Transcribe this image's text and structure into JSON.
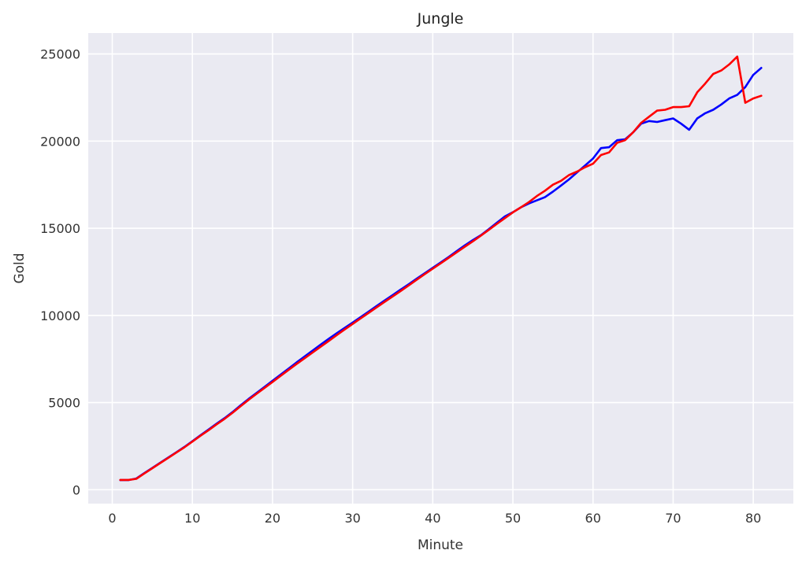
{
  "chart_data": {
    "type": "line",
    "title": "Jungle",
    "xlabel": "Minute",
    "ylabel": "Gold",
    "xlim": [
      -3,
      85
    ],
    "ylim": [
      -800,
      26200
    ],
    "xticks": [
      0,
      10,
      20,
      30,
      40,
      50,
      60,
      70,
      80
    ],
    "yticks": [
      0,
      5000,
      10000,
      15000,
      20000,
      25000
    ],
    "grid": true,
    "colors": {
      "background": "#eaeaf2",
      "grid": "#ffffff"
    },
    "series": [
      {
        "color": "#0000ff",
        "x": [
          1,
          2,
          3,
          4,
          5,
          6,
          7,
          8,
          9,
          10,
          11,
          12,
          13,
          14,
          15,
          16,
          17,
          18,
          19,
          20,
          21,
          22,
          23,
          24,
          25,
          26,
          27,
          28,
          29,
          30,
          31,
          32,
          33,
          34,
          35,
          36,
          37,
          38,
          39,
          40,
          41,
          42,
          43,
          44,
          45,
          46,
          47,
          48,
          49,
          50,
          51,
          52,
          53,
          54,
          55,
          56,
          57,
          58,
          59,
          60,
          61,
          62,
          63,
          64,
          65,
          66,
          67,
          68,
          69,
          70,
          71,
          72,
          73,
          74,
          75,
          76,
          77,
          78,
          79,
          80,
          81
        ],
        "y": [
          550,
          550,
          640,
          950,
          1250,
          1550,
          1850,
          2150,
          2450,
          2780,
          3120,
          3450,
          3780,
          4100,
          4450,
          4830,
          5200,
          5550,
          5900,
          6250,
          6600,
          6950,
          7300,
          7640,
          7980,
          8320,
          8650,
          8970,
          9280,
          9590,
          9900,
          10220,
          10540,
          10860,
          11170,
          11480,
          11790,
          12110,
          12420,
          12730,
          13040,
          13360,
          13690,
          14020,
          14320,
          14600,
          14950,
          15320,
          15680,
          15920,
          16200,
          16420,
          16600,
          16780,
          17100,
          17450,
          17800,
          18200,
          18600,
          19000,
          19600,
          19650,
          20050,
          20100,
          20500,
          21000,
          21150,
          21100,
          21200,
          21300,
          21000,
          20650,
          21300,
          21600,
          21800,
          22100,
          22450,
          22650,
          23100,
          23800,
          24200
        ]
      },
      {
        "color": "#ff0000",
        "x": [
          1,
          2,
          3,
          4,
          5,
          6,
          7,
          8,
          9,
          10,
          11,
          12,
          13,
          14,
          15,
          16,
          17,
          18,
          19,
          20,
          21,
          22,
          23,
          24,
          25,
          26,
          27,
          28,
          29,
          30,
          31,
          32,
          33,
          34,
          35,
          36,
          37,
          38,
          39,
          40,
          41,
          42,
          43,
          44,
          45,
          46,
          47,
          48,
          49,
          50,
          51,
          52,
          53,
          54,
          55,
          56,
          57,
          58,
          59,
          60,
          61,
          62,
          63,
          64,
          65,
          66,
          67,
          68,
          69,
          70,
          71,
          72,
          73,
          74,
          75,
          76,
          77,
          78,
          79,
          80,
          81
        ],
        "y": [
          560,
          560,
          620,
          930,
          1230,
          1530,
          1830,
          2130,
          2430,
          2760,
          3090,
          3410,
          3740,
          4060,
          4410,
          4780,
          5150,
          5500,
          5840,
          6180,
          6530,
          6870,
          7210,
          7540,
          7870,
          8200,
          8530,
          8860,
          9190,
          9510,
          9830,
          10150,
          10460,
          10780,
          11090,
          11400,
          11720,
          12050,
          12370,
          12680,
          12990,
          13310,
          13620,
          13940,
          14250,
          14580,
          14910,
          15250,
          15580,
          15910,
          16200,
          16500,
          16850,
          17150,
          17500,
          17720,
          18050,
          18250,
          18500,
          18700,
          19200,
          19350,
          19900,
          20050,
          20500,
          21050,
          21400,
          21750,
          21800,
          21950,
          21950,
          22000,
          22800,
          23300,
          23850,
          24050,
          24400,
          24850,
          22200,
          22450,
          22600
        ]
      }
    ]
  }
}
